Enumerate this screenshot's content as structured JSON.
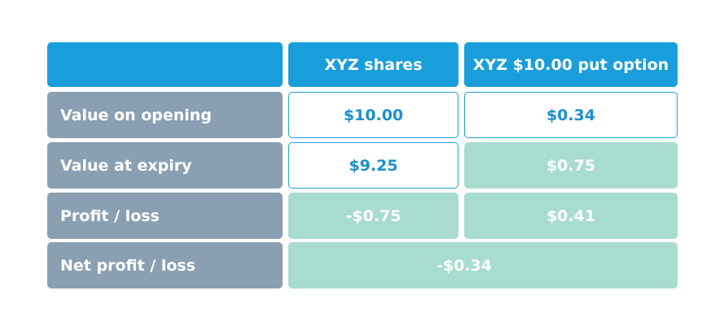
{
  "table": {
    "columns": [
      "XYZ shares",
      "XYZ $10.00 put option"
    ],
    "rows": [
      {
        "label": "Value on opening",
        "cells": [
          "$10.00",
          "$0.34"
        ]
      },
      {
        "label": "Value at expiry",
        "cells": [
          "$9.25",
          "$0.75"
        ]
      },
      {
        "label": "Profit / loss",
        "cells": [
          "-$0.75",
          "$0.41"
        ]
      },
      {
        "label": "Net profit / loss",
        "cells": [
          "-$0.34"
        ]
      }
    ]
  }
}
